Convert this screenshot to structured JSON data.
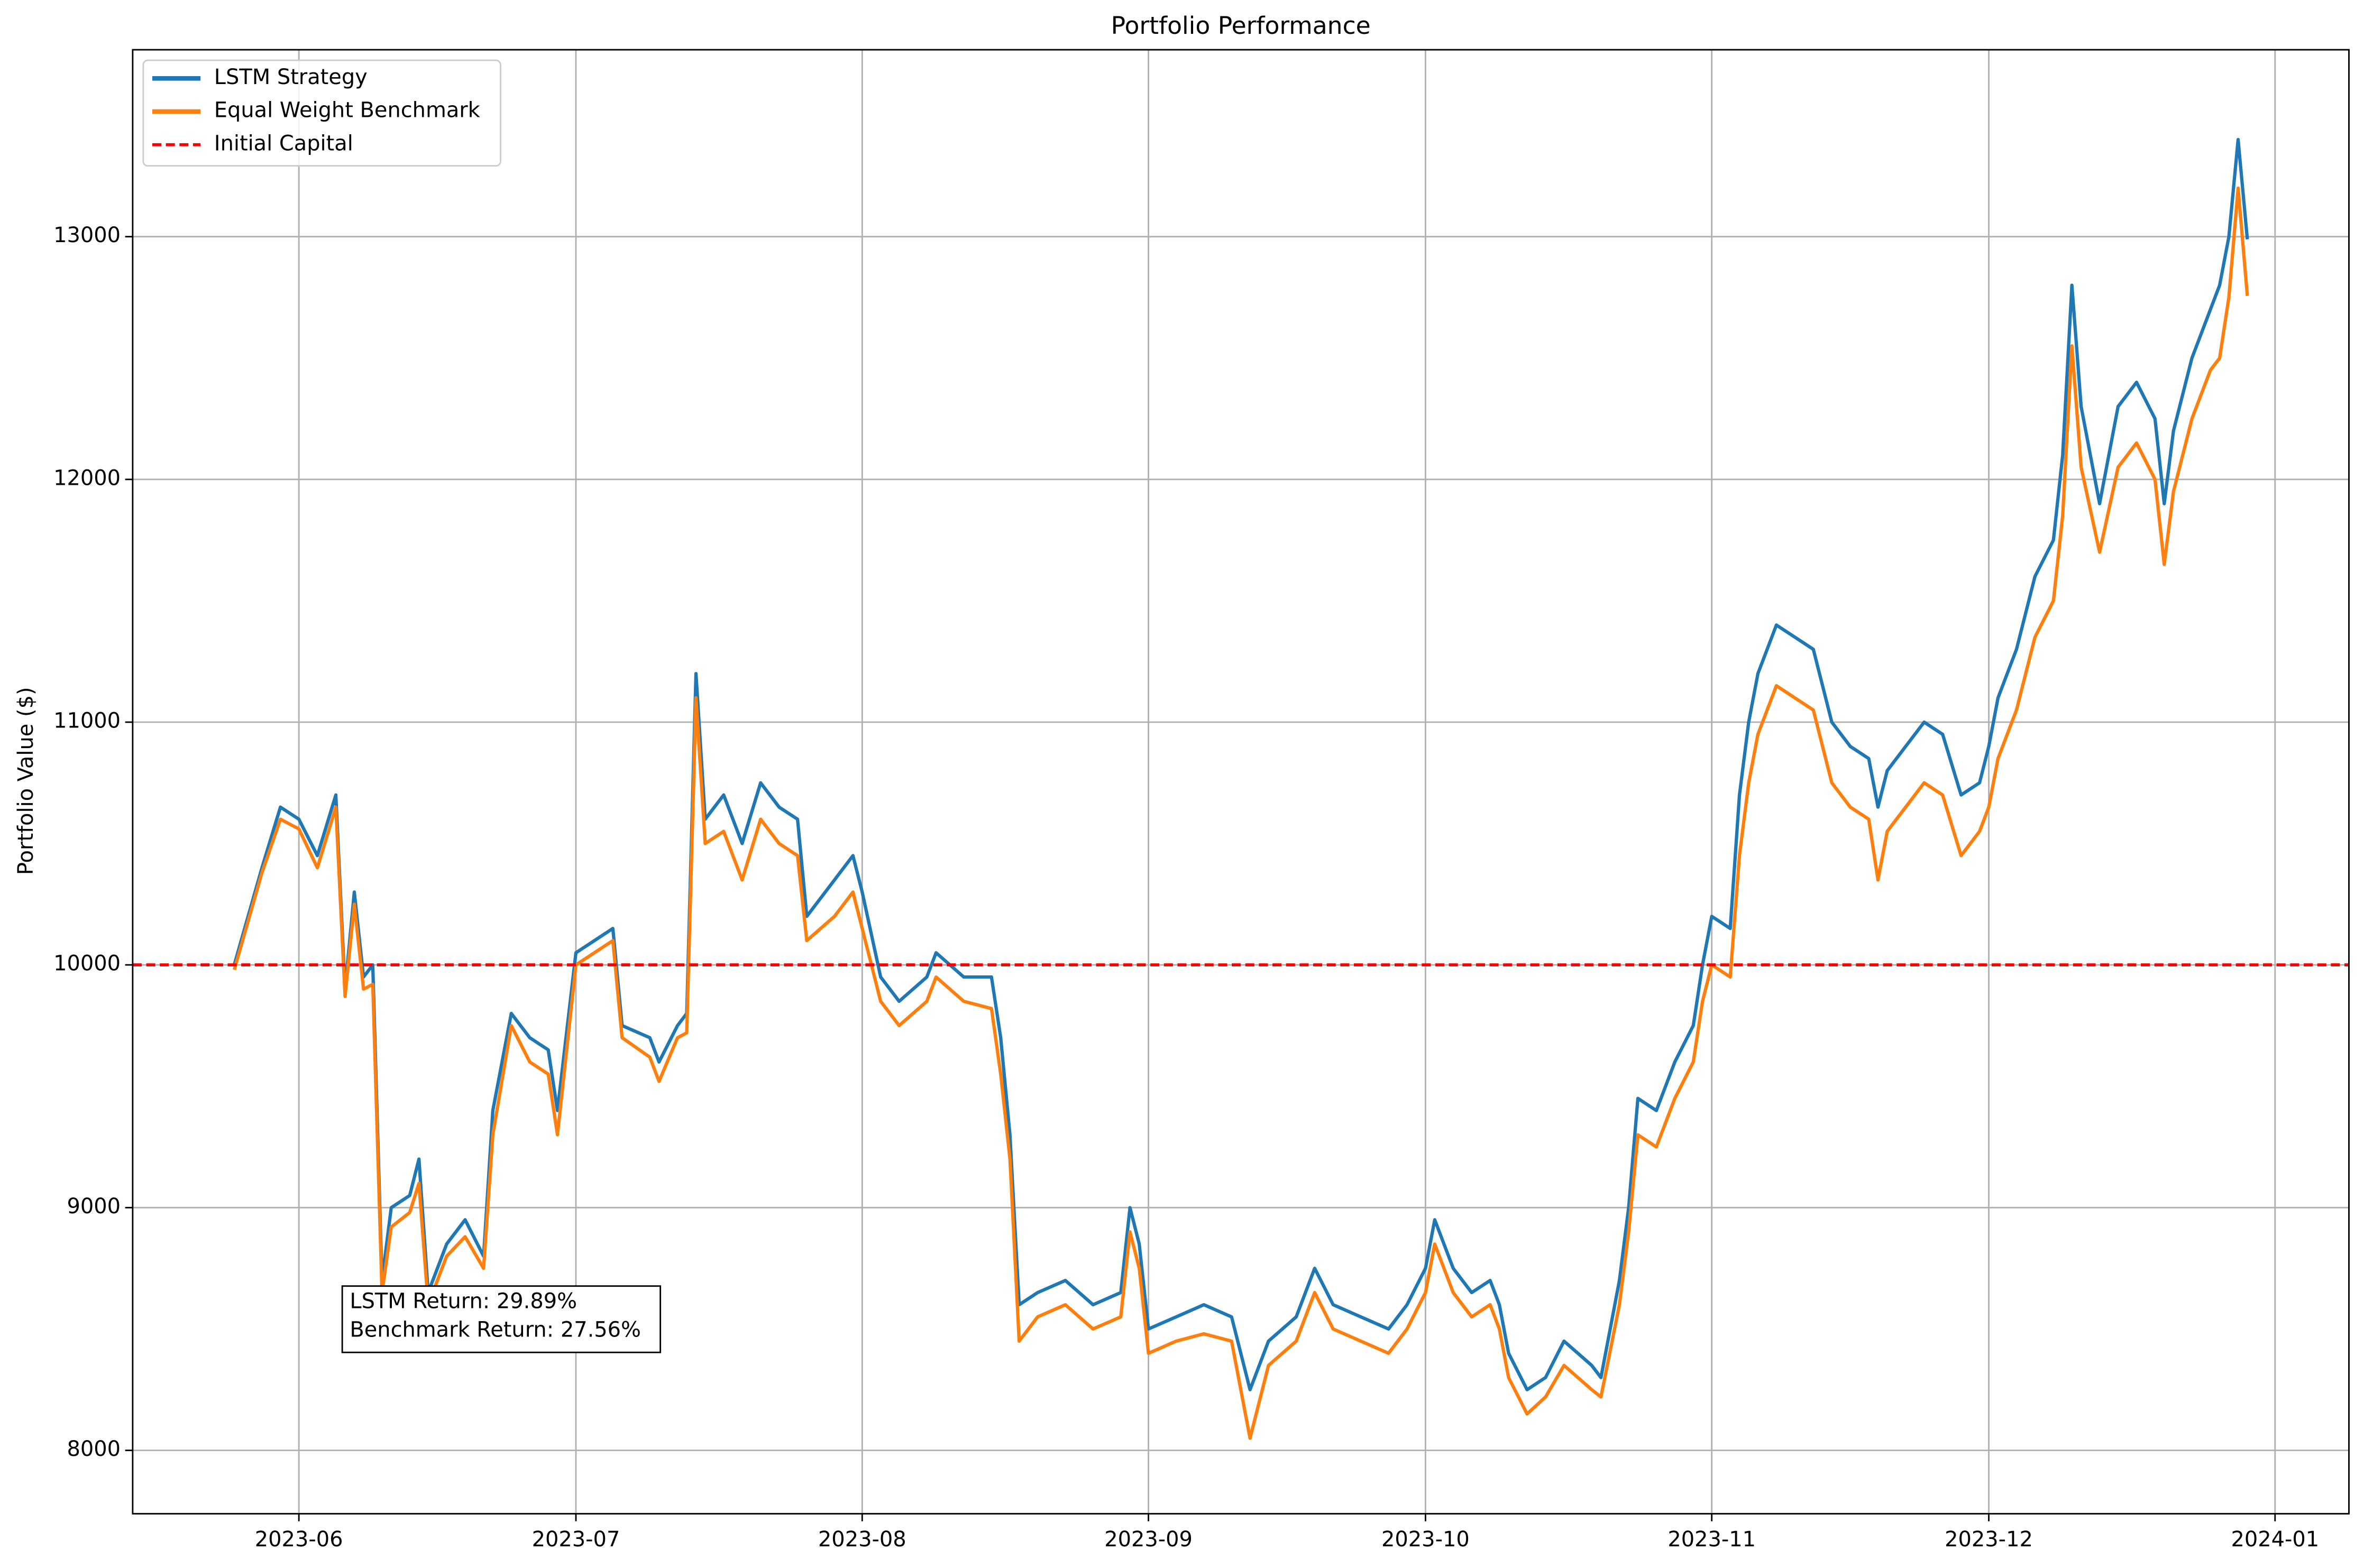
{
  "chart_data": {
    "type": "line",
    "title": "Portfolio Performance",
    "ylabel": "Portfolio Value ($)",
    "x": [
      145,
      148,
      150,
      152,
      154,
      156,
      157,
      158,
      159,
      160,
      161,
      162,
      164,
      165,
      166,
      168,
      170,
      172,
      173,
      175,
      177,
      179,
      180,
      182,
      186,
      187,
      190,
      191,
      193,
      194,
      195,
      196,
      198,
      200,
      202,
      204,
      206,
      207,
      210,
      212,
      213,
      215,
      217,
      220,
      221,
      224,
      227,
      228,
      229,
      230,
      232,
      235,
      238,
      241,
      242,
      243,
      244,
      247,
      250,
      253,
      255,
      257,
      260,
      262,
      264,
      267,
      270,
      272,
      274,
      275,
      277,
      279,
      281,
      282,
      283,
      285,
      287,
      289,
      292,
      293,
      295,
      296,
      297,
      299,
      301,
      303,
      304,
      305,
      307,
      308,
      309,
      310,
      312,
      314,
      316,
      318,
      320,
      322,
      323,
      324,
      326,
      328,
      330,
      332,
      334,
      335,
      336,
      338,
      340,
      342,
      343,
      344,
      345,
      347,
      349,
      351,
      353,
      354,
      355,
      357,
      359,
      360,
      361,
      362,
      363
    ],
    "series": [
      {
        "name": "LSTM Strategy",
        "color": "#1f77b4",
        "values": [
          10000,
          10400,
          10650,
          10600,
          10450,
          10700,
          9900,
          10300,
          9950,
          10000,
          8700,
          9000,
          9050,
          9200,
          8650,
          8850,
          8950,
          8800,
          9400,
          9800,
          9700,
          9650,
          9400,
          10050,
          10150,
          9750,
          9700,
          9600,
          9750,
          9800,
          11200,
          10600,
          10700,
          10500,
          10750,
          10650,
          10600,
          10200,
          10350,
          10450,
          10300,
          9950,
          9850,
          9950,
          10050,
          9950,
          9950,
          9700,
          9300,
          8600,
          8650,
          8700,
          8600,
          8650,
          9000,
          8850,
          8500,
          8550,
          8600,
          8550,
          8250,
          8450,
          8550,
          8750,
          8600,
          8550,
          8500,
          8600,
          8750,
          8950,
          8750,
          8650,
          8700,
          8600,
          8400,
          8250,
          8300,
          8450,
          8350,
          8300,
          8700,
          9000,
          9450,
          9400,
          9600,
          9750,
          10000,
          10200,
          10150,
          10700,
          11000,
          11200,
          11400,
          11350,
          11300,
          11000,
          10900,
          10850,
          10650,
          10800,
          10900,
          11000,
          10950,
          10700,
          10750,
          10900,
          11100,
          11300,
          11600,
          11750,
          12100,
          12800,
          12300,
          11900,
          12300,
          12400,
          12250,
          11900,
          12200,
          12500,
          12700,
          12800,
          13000,
          13400,
          12989
        ]
      },
      {
        "name": "Equal Weight Benchmark",
        "color": "#ff7f0e",
        "values": [
          9980,
          10380,
          10600,
          10560,
          10400,
          10650,
          9870,
          10250,
          9900,
          9920,
          8650,
          8920,
          8980,
          9100,
          8600,
          8800,
          8880,
          8750,
          9300,
          9750,
          9600,
          9550,
          9300,
          10000,
          10100,
          9700,
          9620,
          9520,
          9700,
          9720,
          11100,
          10500,
          10550,
          10350,
          10600,
          10500,
          10450,
          10100,
          10200,
          10300,
          10150,
          9850,
          9750,
          9850,
          9950,
          9850,
          9820,
          9550,
          9200,
          8450,
          8550,
          8600,
          8500,
          8550,
          8900,
          8750,
          8400,
          8450,
          8480,
          8450,
          8050,
          8350,
          8450,
          8650,
          8500,
          8450,
          8400,
          8500,
          8650,
          8850,
          8650,
          8550,
          8600,
          8500,
          8300,
          8150,
          8220,
          8350,
          8250,
          8220,
          8600,
          8900,
          9300,
          9250,
          9450,
          9600,
          9850,
          10000,
          9950,
          10450,
          10750,
          10950,
          11150,
          11100,
          11050,
          10750,
          10650,
          10600,
          10350,
          10550,
          10650,
          10750,
          10700,
          10450,
          10550,
          10650,
          10850,
          11050,
          11350,
          11500,
          11850,
          12550,
          12050,
          11700,
          12050,
          12150,
          12000,
          11650,
          11950,
          12250,
          12450,
          12500,
          12750,
          13200,
          12756
        ]
      }
    ],
    "hlines": [
      {
        "name": "Initial Capital",
        "value": 10000,
        "color": "#ff0000"
      }
    ],
    "annotation": [
      "LSTM Return: 29.89%",
      "Benchmark Return: 27.56%"
    ],
    "xlim": [
      134,
      374
    ],
    "xticks": [
      {
        "value": 152,
        "label": "2023-06"
      },
      {
        "value": 182,
        "label": "2023-07"
      },
      {
        "value": 213,
        "label": "2023-08"
      },
      {
        "value": 244,
        "label": "2023-09"
      },
      {
        "value": 274,
        "label": "2023-10"
      },
      {
        "value": 305,
        "label": "2023-11"
      },
      {
        "value": 335,
        "label": "2023-12"
      },
      {
        "value": 366,
        "label": "2024-01"
      }
    ],
    "ylim": [
      7739,
      13770
    ],
    "yticks": [
      8000,
      9000,
      10000,
      11000,
      12000,
      13000
    ],
    "grid": true,
    "legend": "upper left"
  }
}
